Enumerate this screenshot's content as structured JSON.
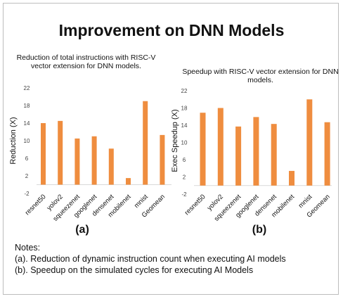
{
  "title": "Improvement on DNN Models",
  "chart_data": [
    {
      "type": "bar",
      "title": "Reduction of total instructions with RISC-V vector extension for DNN models.",
      "ylabel": "Reduction (X)",
      "xlabel": "",
      "panel_label": "(a)",
      "categories": [
        "resnet50",
        "yolov2",
        "squeezenet",
        "googlenet",
        "densenet",
        "mobilenet",
        "mnist",
        "Geomean"
      ],
      "values": [
        14.0,
        14.5,
        10.5,
        11.0,
        8.2,
        1.5,
        19.0,
        11.3
      ],
      "yticks": [
        "22",
        "18",
        "14",
        "10",
        "6",
        "2",
        "-2"
      ],
      "ylim": [
        -2,
        22
      ],
      "grid": false,
      "color": "#ef8d3f"
    },
    {
      "type": "bar",
      "title": "Speedup with RISC-V vector extension for DNN models.",
      "ylabel": "Exec Speedup (X)",
      "xlabel": "",
      "panel_label": "(b)",
      "categories": [
        "resnet50",
        "yolov2",
        "squeezenet",
        "googlenet",
        "densenet",
        "mobilenet",
        "mnist",
        "Geomean"
      ],
      "values": [
        16.9,
        18.0,
        13.7,
        15.9,
        14.3,
        3.4,
        20.0,
        14.7
      ],
      "yticks": [
        "22",
        "18",
        "14",
        "10",
        "6",
        "2",
        "-2"
      ],
      "ylim": [
        -2,
        22
      ],
      "grid": false,
      "color": "#ef8d3f"
    }
  ],
  "notes": {
    "heading": "Notes:",
    "line_a": "(a). Reduction of dynamic instruction count when executing AI models",
    "line_b": "(b). Speedup on the simulated cycles for executing AI Models"
  }
}
